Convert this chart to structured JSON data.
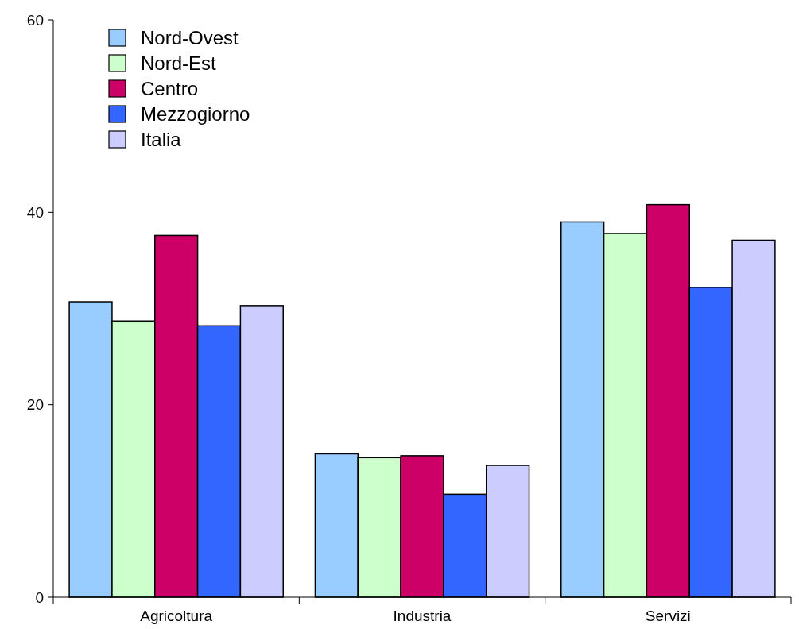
{
  "chart_data": {
    "type": "bar",
    "categories": [
      "Agricoltura",
      "Industria",
      "Servizi"
    ],
    "series": [
      {
        "name": "Nord-Ovest",
        "color": "#99ccff",
        "values": [
          30.7,
          14.9,
          39.0
        ]
      },
      {
        "name": "Nord-Est",
        "color": "#ccffcc",
        "values": [
          28.7,
          14.5,
          37.8
        ]
      },
      {
        "name": "Centro",
        "color": "#cc0066",
        "values": [
          37.6,
          14.7,
          40.8
        ]
      },
      {
        "name": "Mezzogiorno",
        "color": "#3366ff",
        "values": [
          28.2,
          10.7,
          32.2
        ]
      },
      {
        "name": "Italia",
        "color": "#ccccff",
        "values": [
          30.3,
          13.7,
          37.1
        ]
      }
    ],
    "ylim": [
      0,
      60
    ],
    "yticks": [
      0,
      20,
      40,
      60
    ],
    "grid": false,
    "legend": "top left"
  }
}
